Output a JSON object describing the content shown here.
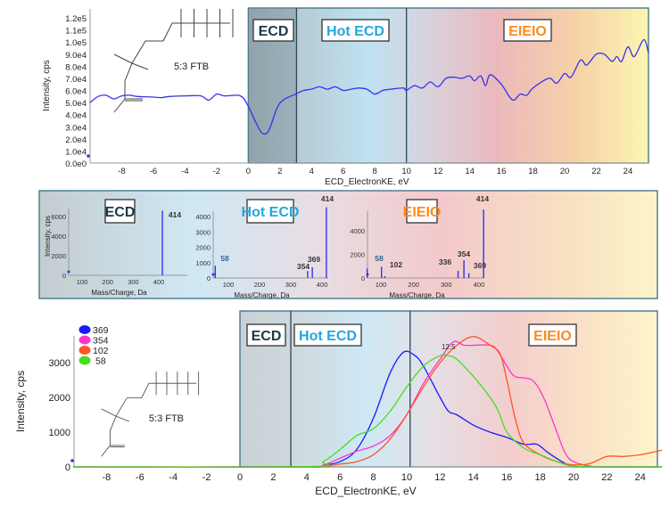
{
  "colors": {
    "ecd_label": "#1b3a4b",
    "hot_ecd_label": "#22a8dd",
    "eieio_label": "#ff8a1c",
    "trace": "#3333ee"
  },
  "chart_data": [
    {
      "type": "line",
      "xlabel": "ECD_ElectronKE, eV",
      "ylabel": "Intensity, cps",
      "xlim": [
        -10,
        25.3
      ],
      "ylim": [
        0,
        120000
      ],
      "xticks": [
        "-8",
        "-6",
        "-4",
        "-2",
        "0",
        "2",
        "4",
        "6",
        "8",
        "10",
        "12",
        "14",
        "16",
        "18",
        "20",
        "22",
        "24"
      ],
      "yticks": [
        "0.0e0",
        "1.0e4",
        "2.0e4",
        "3.0e4",
        "4.0e4",
        "5.0e4",
        "6.0e4",
        "7.0e4",
        "8.0e4",
        "9.0e4",
        "1.0e5",
        "1.1e5",
        "1.2e5"
      ],
      "regions": [
        {
          "label": "ECD",
          "from": 0,
          "to": 3.05
        },
        {
          "label": "Hot ECD",
          "from": 3.05,
          "to": 10
        },
        {
          "label": "EIEIO",
          "from": 10,
          "to": 25.3
        }
      ],
      "molecule_label": "5:3 FTB",
      "series": [
        {
          "color": "#3333ee",
          "x": [
            -10,
            -9.5,
            -9,
            -8.5,
            -8,
            -7.5,
            -7,
            -6,
            -5.5,
            -5,
            -4,
            -3,
            -2.5,
            -2,
            -1.5,
            -0.5,
            0,
            0.5,
            0.9,
            1.3,
            1.8,
            2.2,
            3,
            3.5,
            4,
            4.5,
            5,
            5.5,
            6,
            6.5,
            7,
            7.5,
            8,
            8.5,
            9,
            9.8,
            10,
            10.5,
            11,
            11.5,
            12,
            12.5,
            13,
            13.5,
            14,
            14.3,
            14.7,
            15,
            15.3,
            16,
            16.5,
            16.8,
            17.2,
            17.6,
            18,
            19,
            19.5,
            20,
            20.4,
            21,
            21.4,
            22,
            22.5,
            23,
            23.3,
            23.6,
            24,
            24.4,
            25,
            25.3
          ],
          "y": [
            50000,
            55000,
            56000,
            53000,
            55500,
            56000,
            55000,
            54500,
            54000,
            55000,
            55500,
            55500,
            52000,
            57000,
            55500,
            55500,
            47000,
            33000,
            24500,
            27000,
            45000,
            52000,
            57000,
            60000,
            61000,
            63000,
            61000,
            63000,
            60000,
            61000,
            62000,
            61000,
            57000,
            60000,
            61000,
            62000,
            60000,
            64000,
            62000,
            67000,
            63000,
            70000,
            71000,
            70000,
            72000,
            68000,
            72000,
            64000,
            73000,
            65000,
            55000,
            52000,
            57000,
            56000,
            62000,
            70000,
            66000,
            74000,
            71000,
            85000,
            81000,
            90000,
            90000,
            84000,
            88000,
            84000,
            96000,
            88000,
            102000,
            91000
          ]
        }
      ]
    },
    {
      "type": "bar",
      "title": "ECD",
      "xlabel": "Mass/Charge, Da",
      "ylabel": "Intensity, cps",
      "xlim": [
        50,
        485
      ],
      "ylim": [
        0,
        7000
      ],
      "xticks": [
        "100",
        "200",
        "300",
        "400"
      ],
      "yticks": [
        "0",
        "2000",
        "4000",
        "6000"
      ],
      "peaks": [
        {
          "mz": 414,
          "intensity": 6600,
          "label": "414"
        }
      ]
    },
    {
      "type": "bar",
      "title": "Hot ECD",
      "xlabel": "Mass/Charge, Da",
      "xlim": [
        50,
        425
      ],
      "ylim": [
        0,
        4600
      ],
      "xticks": [
        "100",
        "200",
        "300",
        "400"
      ],
      "yticks": [
        "0",
        "1000",
        "2000",
        "3000",
        "4000"
      ],
      "peaks": [
        {
          "mz": 58,
          "intensity": 800,
          "label": "58"
        },
        {
          "mz": 354,
          "intensity": 450,
          "label": "354"
        },
        {
          "mz": 369,
          "intensity": 700,
          "label": "369"
        },
        {
          "mz": 414,
          "intensity": 4600,
          "label": "414"
        }
      ]
    },
    {
      "type": "bar",
      "title": "EIEIO",
      "xlabel": "Mass/Charge, Da",
      "xlim": [
        50,
        425
      ],
      "ylim": [
        0,
        6000
      ],
      "xticks": [
        "100",
        "200",
        "300",
        "400"
      ],
      "yticks": [
        "0",
        "2000",
        "4000"
      ],
      "peaks": [
        {
          "mz": 58,
          "intensity": 800,
          "label": "58"
        },
        {
          "mz": 102,
          "intensity": 950,
          "label": "102"
        },
        {
          "mz": 112,
          "intensity": 150,
          "label": ""
        },
        {
          "mz": 336,
          "intensity": 600,
          "label": "336"
        },
        {
          "mz": 354,
          "intensity": 1500,
          "label": "354"
        },
        {
          "mz": 369,
          "intensity": 400,
          "label": "369"
        },
        {
          "mz": 414,
          "intensity": 5800,
          "label": "414"
        }
      ]
    },
    {
      "type": "line",
      "xlabel": "ECD_ElectronKE, eV",
      "ylabel": "Intensity, cps",
      "xlim": [
        -10,
        25.3
      ],
      "ylim": [
        0,
        3800
      ],
      "xticks": [
        "-8",
        "-6",
        "-4",
        "-2",
        "0",
        "2",
        "4",
        "6",
        "8",
        "10",
        "12",
        "14",
        "16",
        "18",
        "20",
        "22",
        "24"
      ],
      "yticks": [
        "0",
        "1000",
        "2000",
        "3000"
      ],
      "legend": "top-left",
      "regions": [
        {
          "label": "ECD",
          "from": 0,
          "to": 3.05
        },
        {
          "label": "Hot ECD",
          "from": 3.05,
          "to": 10.2
        },
        {
          "label": "EIEIO",
          "from": 10.2,
          "to": 25.3
        }
      ],
      "annotation": "12.5",
      "molecule_label": "5:3 FTB",
      "series": [
        {
          "name": "369",
          "color": "#1a1aff",
          "x": [
            -10,
            4,
            5,
            6,
            7,
            8,
            9,
            9.8,
            10.5,
            11,
            12,
            12.5,
            13,
            14,
            15,
            16,
            17,
            17.8,
            18.5,
            19.5,
            20,
            21,
            25.3
          ],
          "y": [
            0,
            0,
            50,
            150,
            500,
            1400,
            2700,
            3300,
            3200,
            2900,
            2000,
            1600,
            1500,
            1200,
            1000,
            850,
            650,
            650,
            400,
            100,
            20,
            0,
            0
          ]
        },
        {
          "name": "354",
          "color": "#ff33cc",
          "x": [
            -10,
            4,
            5,
            6,
            7,
            8,
            9,
            10,
            11,
            12,
            12.8,
            13.5,
            15,
            15.5,
            16,
            16.5,
            17.5,
            18.2,
            19,
            19.5,
            20,
            21,
            22,
            25.3
          ],
          "y": [
            0,
            0,
            50,
            250,
            450,
            600,
            900,
            1500,
            2400,
            3100,
            3600,
            3500,
            3500,
            3300,
            2900,
            2600,
            2500,
            2000,
            1000,
            400,
            150,
            20,
            0,
            0
          ]
        },
        {
          "name": "102",
          "color": "#ff5522",
          "x": [
            -10,
            4,
            5,
            6,
            7,
            8,
            9,
            10,
            11,
            12,
            13,
            14,
            15,
            15.6,
            16,
            16.5,
            17,
            18,
            19,
            20,
            21,
            22,
            23,
            24,
            25.3
          ],
          "y": [
            0,
            0,
            20,
            80,
            150,
            350,
            800,
            1500,
            2300,
            3000,
            3500,
            3750,
            3500,
            3250,
            2500,
            1400,
            700,
            350,
            150,
            60,
            100,
            300,
            300,
            350,
            480
          ]
        },
        {
          "name": "58",
          "color": "#44dd22",
          "x": [
            -10,
            4,
            5,
            6,
            7,
            8,
            9,
            10,
            11,
            12,
            12.5,
            13,
            14,
            15,
            15.5,
            16,
            17,
            18,
            19,
            20,
            22,
            25.3
          ],
          "y": [
            0,
            10,
            150,
            500,
            900,
            1100,
            1600,
            2300,
            2900,
            3200,
            3200,
            3100,
            2600,
            2000,
            1600,
            1000,
            550,
            350,
            150,
            20,
            0,
            0
          ]
        }
      ]
    }
  ]
}
